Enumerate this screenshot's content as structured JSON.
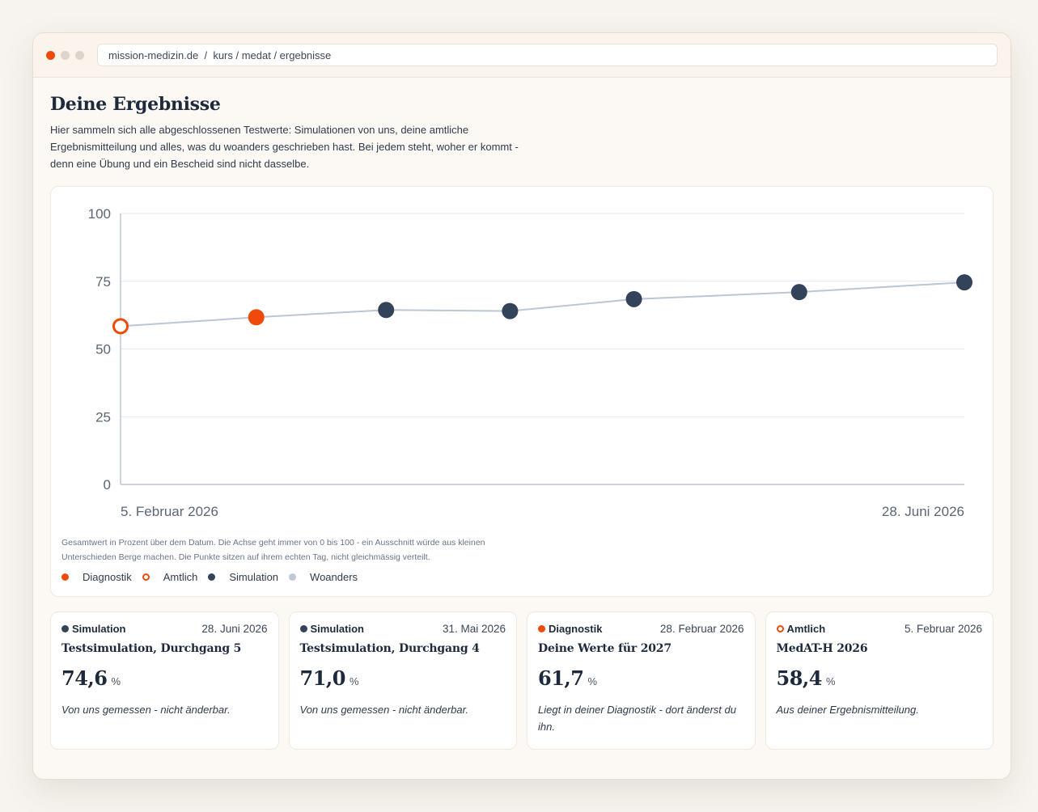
{
  "window": {
    "url": "mission-medizin.de  /  kurs / medat / ergebnisse"
  },
  "page": {
    "title": "Deine Ergebnisse",
    "intro": "Hier sammeln sich alle abgeschlossenen Testwerte: Simulationen von uns, deine amtliche Ergebnismitteilung und alles, was du woanders geschrieben hast. Bei jedem steht, woher er kommt - denn eine Übung und ein Bescheid sind nicht dasselbe."
  },
  "colors": {
    "diagnostik": "#f04a0a",
    "amtlich": "#f04a0a",
    "simulation": "#33435a",
    "woanders": "#bfc8d6",
    "line": "#bcc6d4"
  },
  "chart_data": {
    "type": "line",
    "ylim": [
      0,
      100
    ],
    "yticks": [
      "0",
      "25",
      "50",
      "75",
      "100"
    ],
    "xlim": [
      "2026-02-05",
      "2026-06-28"
    ],
    "xtick_labels": [
      "5. Februar 2026",
      "28. Juni 2026"
    ],
    "points": [
      {
        "date": "2026-02-05",
        "value": 58.4,
        "kind": "amtlich"
      },
      {
        "date": "2026-02-28",
        "value": 61.7,
        "kind": "diagnostik"
      },
      {
        "date": "2026-03-22",
        "value": 64.4,
        "kind": "simulation"
      },
      {
        "date": "2026-04-12",
        "value": 64.0,
        "kind": "simulation"
      },
      {
        "date": "2026-05-03",
        "value": 68.4,
        "kind": "simulation"
      },
      {
        "date": "2026-05-31",
        "value": 71.0,
        "kind": "simulation"
      },
      {
        "date": "2026-06-28",
        "value": 74.6,
        "kind": "simulation"
      }
    ],
    "note": "Gesamtwert in Prozent über dem Datum. Die Achse geht immer von 0 bis 100 - ein Ausschnitt würde aus kleinen Unterschieden Berge machen. Die Punkte sitzen auf ihrem echten Tag, nicht gleichmässig verteilt.",
    "legend": [
      {
        "label": "Diagnostik",
        "kind": "diagnostik"
      },
      {
        "label": "Amtlich",
        "kind": "amtlich"
      },
      {
        "label": "Simulation",
        "kind": "simulation"
      },
      {
        "label": "Woanders",
        "kind": "woanders"
      }
    ]
  },
  "cards": [
    {
      "kind": "simulation",
      "kind_label": "Simulation",
      "date": "28. Juni 2026",
      "title": "Testsimulation, Durchgang 5",
      "value": "74,6",
      "unit": "%",
      "note": "Von uns gemessen - nicht änderbar."
    },
    {
      "kind": "simulation",
      "kind_label": "Simulation",
      "date": "31. Mai 2026",
      "title": "Testsimulation, Durchgang 4",
      "value": "71,0",
      "unit": "%",
      "note": "Von uns gemessen - nicht änderbar."
    },
    {
      "kind": "diagnostik",
      "kind_label": "Diagnostik",
      "date": "28. Februar 2026",
      "title": "Deine Werte für 2027",
      "value": "61,7",
      "unit": "%",
      "note": "Liegt in deiner Diagnostik - dort änderst du ihn."
    },
    {
      "kind": "amtlich",
      "kind_label": "Amtlich",
      "date": "5. Februar 2026",
      "title": "MedAT-H 2026",
      "value": "58,4",
      "unit": "%",
      "note": "Aus deiner Ergebnismitteilung."
    }
  ]
}
